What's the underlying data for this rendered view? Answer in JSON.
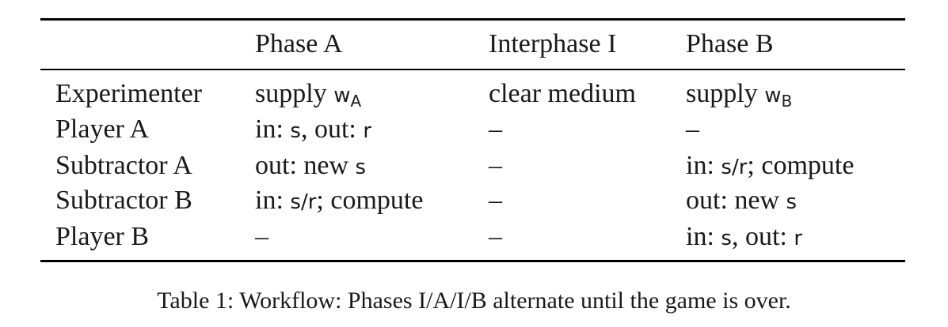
{
  "table": {
    "headers": [
      "",
      "Phase A",
      "Interphase I",
      "Phase B"
    ],
    "rows": [
      {
        "role": "Experimenter",
        "phase_a": {
          "text": "supply ",
          "code": "w",
          "sub": "A"
        },
        "interphase": "clear medium",
        "phase_b": {
          "text": "supply ",
          "code": "w",
          "sub": "B"
        }
      },
      {
        "role": "Player A",
        "phase_a": {
          "in_label": "in: ",
          "in_code": "s",
          "sep": ", out: ",
          "out_code": "r"
        },
        "interphase": "–",
        "phase_b": "–"
      },
      {
        "role": "Subtractor A",
        "phase_a": {
          "label": "out: new ",
          "code": "s"
        },
        "interphase": "–",
        "phase_b": {
          "label": "in: ",
          "code": "s/r",
          "tail": "; compute"
        }
      },
      {
        "role": "Subtractor B",
        "phase_a": {
          "label": "in: ",
          "code": "s/r",
          "tail": "; compute"
        },
        "interphase": "–",
        "phase_b": {
          "label": "out: new ",
          "code": "s"
        }
      },
      {
        "role": "Player B",
        "phase_a": "–",
        "interphase": "–",
        "phase_b": {
          "in_label": "in: ",
          "in_code": "s",
          "sep": ", out: ",
          "out_code": "r"
        }
      }
    ]
  },
  "caption": "Table 1: Workflow: Phases I/A/I/B alternate until the game is over."
}
